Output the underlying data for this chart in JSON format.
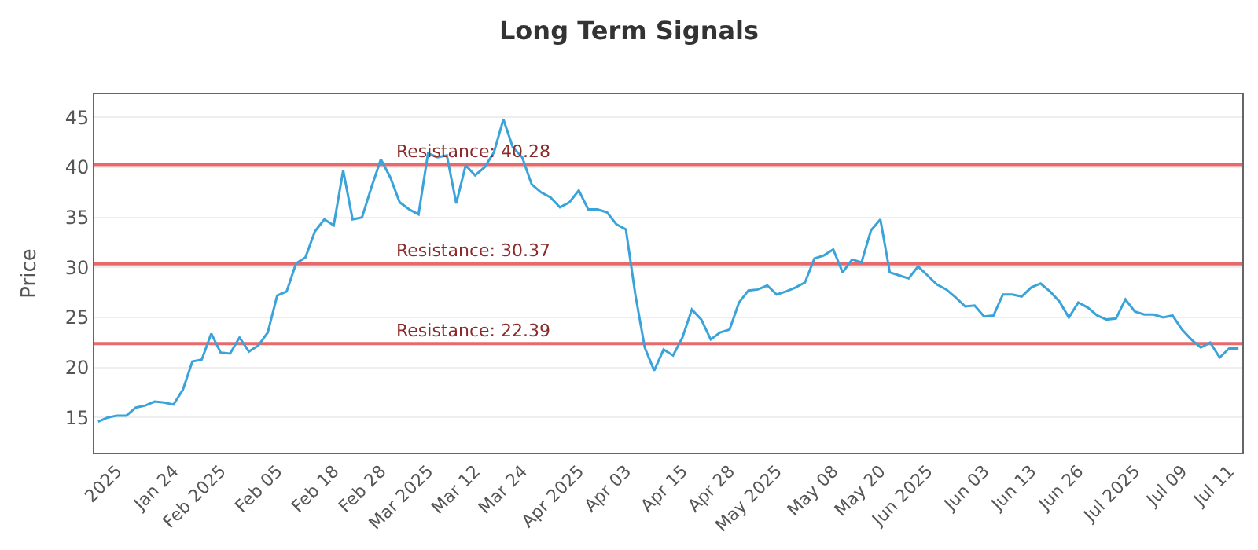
{
  "chart_data": {
    "type": "line",
    "title": "Long Term Signals",
    "ylabel": "Price",
    "categories": [
      null,
      null,
      "2025",
      null,
      null,
      null,
      null,
      null,
      "Jan 24",
      null,
      null,
      null,
      null,
      "Feb 2025",
      null,
      null,
      null,
      null,
      null,
      "Feb 05",
      null,
      null,
      null,
      null,
      null,
      "Feb 18",
      null,
      null,
      null,
      null,
      "Feb 28",
      null,
      null,
      null,
      null,
      "Mar 2025",
      null,
      null,
      null,
      null,
      "Mar 12",
      null,
      null,
      null,
      null,
      "Mar 24",
      null,
      null,
      null,
      null,
      null,
      "Apr 2025",
      null,
      null,
      null,
      null,
      "Apr 03",
      null,
      null,
      null,
      null,
      null,
      "Apr 15",
      null,
      null,
      null,
      null,
      "Apr 28",
      null,
      null,
      null,
      null,
      "May 2025",
      null,
      null,
      null,
      null,
      null,
      "May 08",
      null,
      null,
      null,
      null,
      "May 20",
      null,
      null,
      null,
      null,
      "Jun 2025",
      null,
      null,
      null,
      null,
      null,
      "Jun 03",
      null,
      null,
      null,
      null,
      "Jun 13",
      null,
      null,
      null,
      null,
      "Jun 26",
      null,
      null,
      null,
      null,
      null,
      "Jul 2025",
      null,
      null,
      null,
      null,
      "Jul 09",
      null,
      null,
      null,
      null,
      "Jul 11",
      null
    ],
    "series": [
      {
        "color": "#3aa3d9",
        "values": [
          14.6,
          15.0,
          15.2,
          15.2,
          16.0,
          16.2,
          16.6,
          16.5,
          16.3,
          17.8,
          20.6,
          20.8,
          23.4,
          21.5,
          21.4,
          23.0,
          21.6,
          22.2,
          23.5,
          27.2,
          27.6,
          30.4,
          31.0,
          33.6,
          34.8,
          34.2,
          39.7,
          34.8,
          35.0,
          38.0,
          40.8,
          39.0,
          36.5,
          35.8,
          35.3,
          41.4,
          41.0,
          41.2,
          36.4,
          40.2,
          39.2,
          40.0,
          41.5,
          44.8,
          42.0,
          41.0,
          38.3,
          37.5,
          37.0,
          36.0,
          36.5,
          37.7,
          35.8,
          35.8,
          35.5,
          34.3,
          33.8,
          27.3,
          22.0,
          19.7,
          21.8,
          21.2,
          23.0,
          25.8,
          24.8,
          22.8,
          23.5,
          23.8,
          26.5,
          27.7,
          27.8,
          28.2,
          27.3,
          27.6,
          28.0,
          28.5,
          30.9,
          31.2,
          31.8,
          29.5,
          30.8,
          30.5,
          33.7,
          34.8,
          29.5,
          29.2,
          28.9,
          30.1,
          29.2,
          28.3,
          27.8,
          27.0,
          26.1,
          26.2,
          25.1,
          25.2,
          27.3,
          27.3,
          27.1,
          28.0,
          28.4,
          27.6,
          26.6,
          25.0,
          26.5,
          26.0,
          25.2,
          24.8,
          24.9,
          26.8,
          25.6,
          25.3,
          25.3,
          25.0,
          25.2,
          23.8,
          22.8,
          22.0,
          22.5,
          21.0,
          21.9,
          21.9
        ]
      }
    ],
    "ylim": [
      11.5,
      47.3
    ],
    "yticks": [
      15,
      20,
      25,
      30,
      35,
      40,
      45
    ],
    "grid": "y",
    "marker": "none",
    "line_style": "solid",
    "ref_lines": [
      {
        "axis": "y",
        "value": 40.28,
        "label": "Resistance: 40.28",
        "color": "#e8696b"
      },
      {
        "axis": "y",
        "value": 30.37,
        "label": "Resistance: 30.37",
        "color": "#e8696b"
      },
      {
        "axis": "y",
        "value": 22.39,
        "label": "Resistance: 22.39",
        "color": "#e8696b"
      }
    ]
  }
}
